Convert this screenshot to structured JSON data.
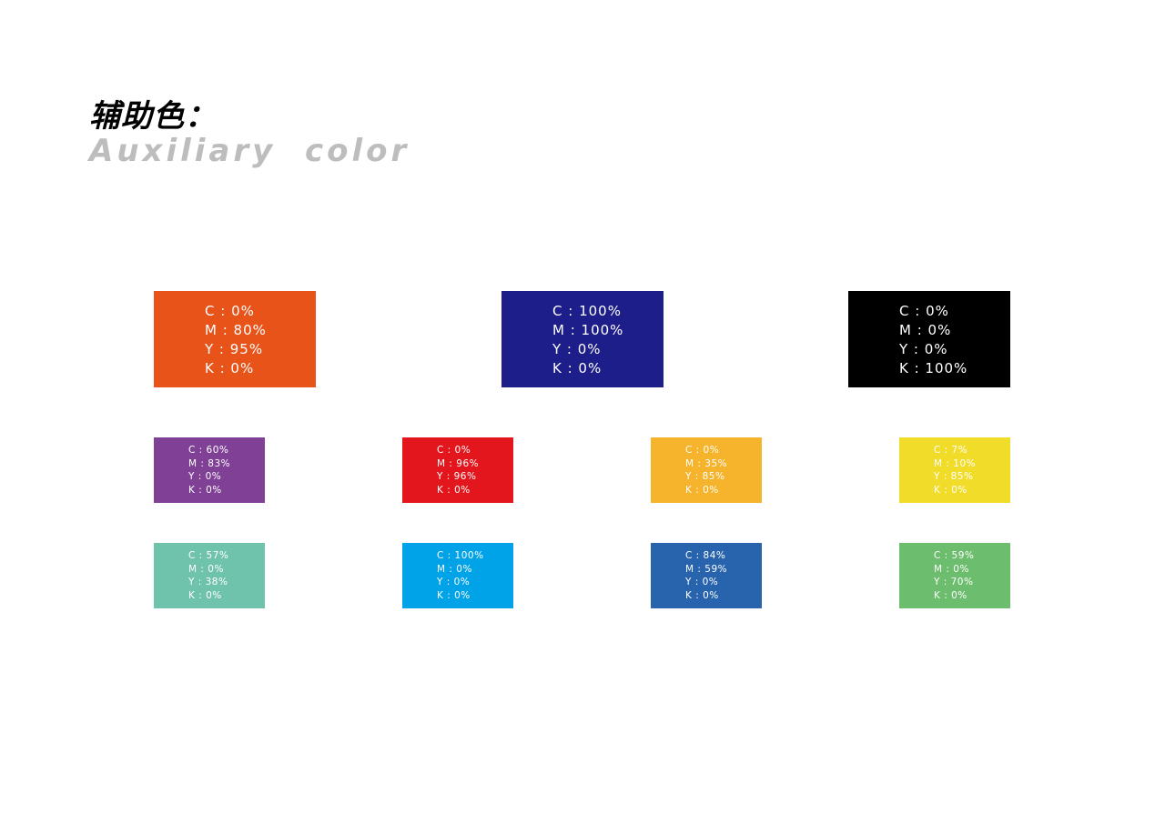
{
  "heading": {
    "zh": "辅助色：",
    "en": "Auxiliary  color"
  },
  "large_swatches": [
    {
      "color": "#e8531a",
      "c": "C : 0%",
      "m": "M : 80%",
      "y": "Y : 95%",
      "k": "K : 0%"
    },
    {
      "color": "#1e1e8a",
      "c": "C : 100%",
      "m": "M : 100%",
      "y": "Y : 0%",
      "k": "K : 0%"
    },
    {
      "color": "#000000",
      "c": "C : 0%",
      "m": "M : 0%",
      "y": "Y : 0%",
      "k": "K : 100%"
    }
  ],
  "small_swatches": [
    {
      "color": "#7f4096",
      "c": "C : 60%",
      "m": "M : 83%",
      "y": "Y : 0%",
      "k": "K : 0%"
    },
    {
      "color": "#e4161d",
      "c": "C : 0%",
      "m": "M : 96%",
      "y": "Y : 96%",
      "k": "K : 0%"
    },
    {
      "color": "#f6b32c",
      "c": "C : 0%",
      "m": "M : 35%",
      "y": "Y : 85%",
      "k": "K : 0%"
    },
    {
      "color": "#f1dc2a",
      "c": "C : 7%",
      "m": "M : 10%",
      "y": "Y : 85%",
      "k": "K : 0%"
    },
    {
      "color": "#6fc3ad",
      "c": "C : 57%",
      "m": "M : 0%",
      "y": "Y : 38%",
      "k": "K : 0%"
    },
    {
      "color": "#00a2e8",
      "c": "C : 100%",
      "m": "M : 0%",
      "y": "Y : 0%",
      "k": "K : 0%"
    },
    {
      "color": "#2863ad",
      "c": "C : 84%",
      "m": "M : 59%",
      "y": "Y : 0%",
      "k": "K : 0%"
    },
    {
      "color": "#6cbe6e",
      "c": "C : 59%",
      "m": "M : 0%",
      "y": "Y : 70%",
      "k": "K : 0%"
    }
  ]
}
